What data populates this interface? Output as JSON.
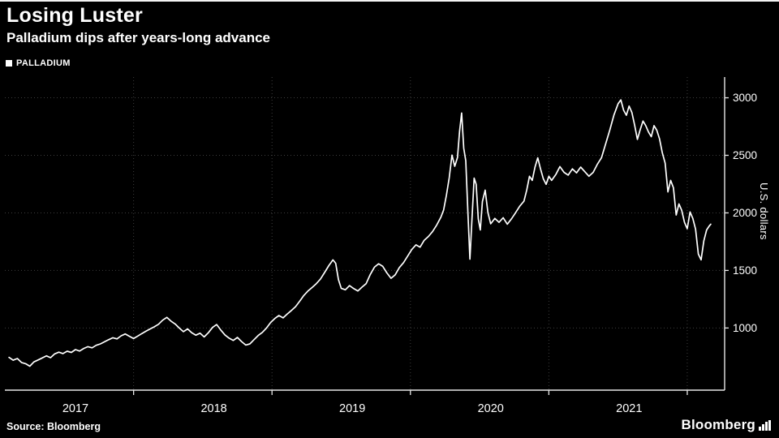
{
  "header": {
    "title": "Losing Luster",
    "subtitle": "Palladium dips after years-long advance"
  },
  "legend": {
    "label": "PALLADIUM"
  },
  "footer": {
    "source": "Source:  Bloomberg",
    "brand": "Bloomberg"
  },
  "chart_data": {
    "type": "line",
    "title": "Losing Luster",
    "subtitle": "Palladium dips after years-long advance",
    "series_name": "PALLADIUM",
    "xlabel": "",
    "ylabel": "U.S. dollars",
    "x_ticks": [
      2017,
      2018,
      2019,
      2020,
      2021
    ],
    "y_ticks": [
      1000,
      1500,
      2000,
      2500,
      3000
    ],
    "xlim": [
      2016.85,
      2022.05
    ],
    "ylim": [
      460,
      3180
    ],
    "grid": true,
    "legend_position": "top-left",
    "line_color": "#ffffff",
    "grid_color": "#3d3d3d",
    "axis_color": "#e8e8e8",
    "background_color": "#000000",
    "points": [
      [
        2016.88,
        745
      ],
      [
        2016.91,
        720
      ],
      [
        2016.94,
        735
      ],
      [
        2016.97,
        700
      ],
      [
        2017.0,
        690
      ],
      [
        2017.03,
        668
      ],
      [
        2017.06,
        705
      ],
      [
        2017.09,
        722
      ],
      [
        2017.12,
        740
      ],
      [
        2017.15,
        758
      ],
      [
        2017.18,
        742
      ],
      [
        2017.21,
        775
      ],
      [
        2017.24,
        790
      ],
      [
        2017.27,
        778
      ],
      [
        2017.3,
        798
      ],
      [
        2017.33,
        788
      ],
      [
        2017.36,
        812
      ],
      [
        2017.39,
        800
      ],
      [
        2017.42,
        822
      ],
      [
        2017.45,
        838
      ],
      [
        2017.48,
        828
      ],
      [
        2017.51,
        850
      ],
      [
        2017.54,
        862
      ],
      [
        2017.57,
        880
      ],
      [
        2017.6,
        898
      ],
      [
        2017.63,
        915
      ],
      [
        2017.66,
        905
      ],
      [
        2017.69,
        932
      ],
      [
        2017.72,
        948
      ],
      [
        2017.75,
        928
      ],
      [
        2017.78,
        908
      ],
      [
        2017.81,
        930
      ],
      [
        2017.84,
        952
      ],
      [
        2017.87,
        972
      ],
      [
        2017.9,
        992
      ],
      [
        2017.93,
        1010
      ],
      [
        2017.96,
        1032
      ],
      [
        2017.99,
        1068
      ],
      [
        2018.02,
        1092
      ],
      [
        2018.05,
        1060
      ],
      [
        2018.08,
        1035
      ],
      [
        2018.11,
        1000
      ],
      [
        2018.14,
        968
      ],
      [
        2018.17,
        992
      ],
      [
        2018.2,
        958
      ],
      [
        2018.23,
        938
      ],
      [
        2018.26,
        955
      ],
      [
        2018.29,
        922
      ],
      [
        2018.32,
        958
      ],
      [
        2018.35,
        1005
      ],
      [
        2018.38,
        1030
      ],
      [
        2018.41,
        982
      ],
      [
        2018.44,
        940
      ],
      [
        2018.47,
        912
      ],
      [
        2018.5,
        892
      ],
      [
        2018.53,
        918
      ],
      [
        2018.56,
        882
      ],
      [
        2018.59,
        852
      ],
      [
        2018.62,
        862
      ],
      [
        2018.65,
        898
      ],
      [
        2018.68,
        935
      ],
      [
        2018.71,
        962
      ],
      [
        2018.74,
        1000
      ],
      [
        2018.77,
        1048
      ],
      [
        2018.8,
        1082
      ],
      [
        2018.83,
        1108
      ],
      [
        2018.86,
        1088
      ],
      [
        2018.89,
        1122
      ],
      [
        2018.92,
        1152
      ],
      [
        2018.95,
        1185
      ],
      [
        2018.98,
        1232
      ],
      [
        2019.01,
        1282
      ],
      [
        2019.04,
        1322
      ],
      [
        2019.07,
        1352
      ],
      [
        2019.1,
        1385
      ],
      [
        2019.13,
        1425
      ],
      [
        2019.16,
        1482
      ],
      [
        2019.19,
        1542
      ],
      [
        2019.22,
        1592
      ],
      [
        2019.24,
        1562
      ],
      [
        2019.26,
        1420
      ],
      [
        2019.28,
        1345
      ],
      [
        2019.31,
        1332
      ],
      [
        2019.34,
        1368
      ],
      [
        2019.37,
        1342
      ],
      [
        2019.4,
        1322
      ],
      [
        2019.43,
        1355
      ],
      [
        2019.46,
        1385
      ],
      [
        2019.49,
        1465
      ],
      [
        2019.52,
        1528
      ],
      [
        2019.55,
        1558
      ],
      [
        2019.58,
        1535
      ],
      [
        2019.61,
        1478
      ],
      [
        2019.64,
        1432
      ],
      [
        2019.67,
        1462
      ],
      [
        2019.7,
        1525
      ],
      [
        2019.73,
        1568
      ],
      [
        2019.76,
        1625
      ],
      [
        2019.79,
        1682
      ],
      [
        2019.82,
        1722
      ],
      [
        2019.85,
        1702
      ],
      [
        2019.88,
        1762
      ],
      [
        2019.91,
        1795
      ],
      [
        2019.94,
        1838
      ],
      [
        2019.97,
        1895
      ],
      [
        2020.0,
        1962
      ],
      [
        2020.02,
        2025
      ],
      [
        2020.04,
        2152
      ],
      [
        2020.06,
        2305
      ],
      [
        2020.08,
        2502
      ],
      [
        2020.1,
        2405
      ],
      [
        2020.12,
        2482
      ],
      [
        2020.135,
        2705
      ],
      [
        2020.15,
        2868
      ],
      [
        2020.165,
        2562
      ],
      [
        2020.18,
        2452
      ],
      [
        2020.195,
        2005
      ],
      [
        2020.21,
        1598
      ],
      [
        2020.225,
        1955
      ],
      [
        2020.24,
        2302
      ],
      [
        2020.255,
        2248
      ],
      [
        2020.27,
        1948
      ],
      [
        2020.285,
        1852
      ],
      [
        2020.3,
        2098
      ],
      [
        2020.32,
        2198
      ],
      [
        2020.34,
        2002
      ],
      [
        2020.36,
        1905
      ],
      [
        2020.39,
        1952
      ],
      [
        2020.42,
        1918
      ],
      [
        2020.45,
        1958
      ],
      [
        2020.48,
        1902
      ],
      [
        2020.51,
        1948
      ],
      [
        2020.54,
        2002
      ],
      [
        2020.57,
        2058
      ],
      [
        2020.6,
        2102
      ],
      [
        2020.62,
        2198
      ],
      [
        2020.64,
        2318
      ],
      [
        2020.66,
        2282
      ],
      [
        2020.68,
        2398
      ],
      [
        2020.7,
        2478
      ],
      [
        2020.72,
        2382
      ],
      [
        2020.74,
        2298
      ],
      [
        2020.76,
        2248
      ],
      [
        2020.78,
        2318
      ],
      [
        2020.8,
        2282
      ],
      [
        2020.83,
        2332
      ],
      [
        2020.86,
        2402
      ],
      [
        2020.89,
        2352
      ],
      [
        2020.92,
        2328
      ],
      [
        2020.95,
        2382
      ],
      [
        2020.98,
        2348
      ],
      [
        2021.01,
        2398
      ],
      [
        2021.04,
        2358
      ],
      [
        2021.07,
        2318
      ],
      [
        2021.1,
        2352
      ],
      [
        2021.13,
        2422
      ],
      [
        2021.16,
        2478
      ],
      [
        2021.19,
        2598
      ],
      [
        2021.22,
        2718
      ],
      [
        2021.25,
        2848
      ],
      [
        2021.28,
        2948
      ],
      [
        2021.3,
        2982
      ],
      [
        2021.32,
        2892
      ],
      [
        2021.34,
        2848
      ],
      [
        2021.36,
        2928
      ],
      [
        2021.38,
        2872
      ],
      [
        2021.4,
        2762
      ],
      [
        2021.42,
        2638
      ],
      [
        2021.44,
        2722
      ],
      [
        2021.46,
        2798
      ],
      [
        2021.48,
        2758
      ],
      [
        2021.5,
        2702
      ],
      [
        2021.52,
        2662
      ],
      [
        2021.54,
        2758
      ],
      [
        2021.56,
        2718
      ],
      [
        2021.58,
        2642
      ],
      [
        2021.6,
        2522
      ],
      [
        2021.62,
        2432
      ],
      [
        2021.64,
        2182
      ],
      [
        2021.66,
        2282
      ],
      [
        2021.68,
        2218
      ],
      [
        2021.7,
        1982
      ],
      [
        2021.72,
        2078
      ],
      [
        2021.74,
        2022
      ],
      [
        2021.76,
        1918
      ],
      [
        2021.78,
        1862
      ],
      [
        2021.8,
        2008
      ],
      [
        2021.82,
        1952
      ],
      [
        2021.84,
        1858
      ],
      [
        2021.86,
        1642
      ],
      [
        2021.88,
        1592
      ],
      [
        2021.9,
        1758
      ],
      [
        2021.92,
        1852
      ],
      [
        2021.94,
        1888
      ],
      [
        2021.95,
        1902
      ]
    ]
  }
}
